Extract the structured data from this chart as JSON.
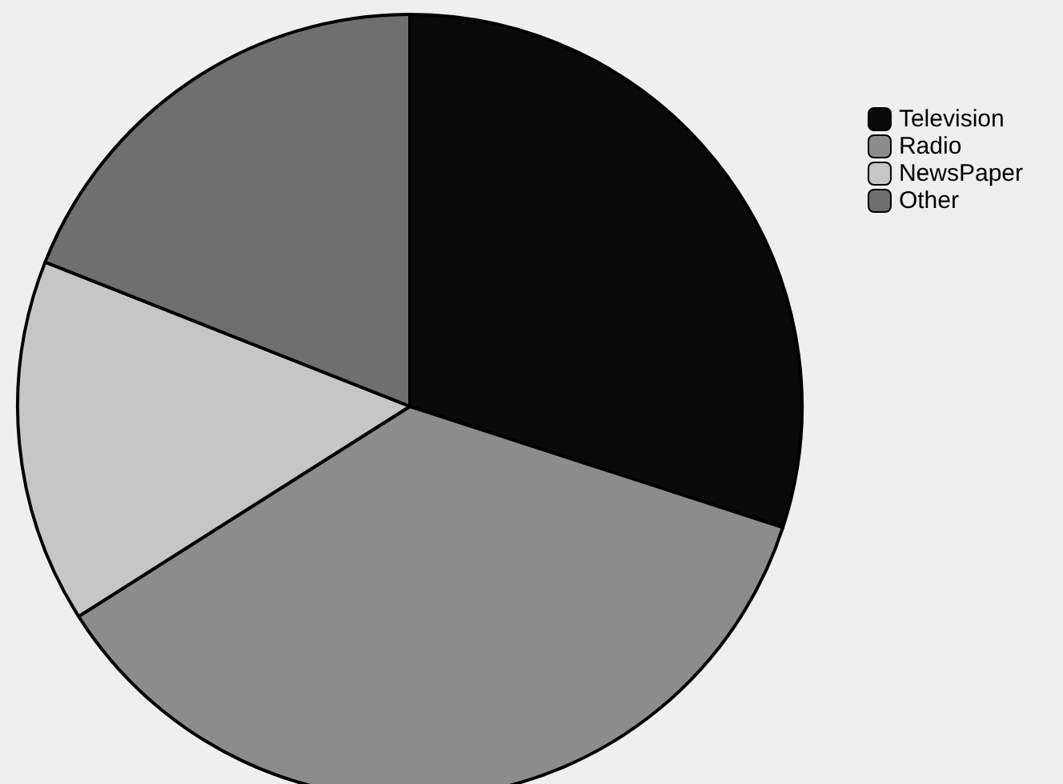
{
  "chart_data": {
    "type": "pie",
    "categories": [
      "Television",
      "Radio",
      "NewsPaper",
      "Other"
    ],
    "values": [
      30,
      36,
      15,
      19
    ],
    "colors": [
      "#0a0a0a",
      "#8c8c8c",
      "#c6c6c6",
      "#6f6f6f"
    ],
    "legend": "top right"
  }
}
